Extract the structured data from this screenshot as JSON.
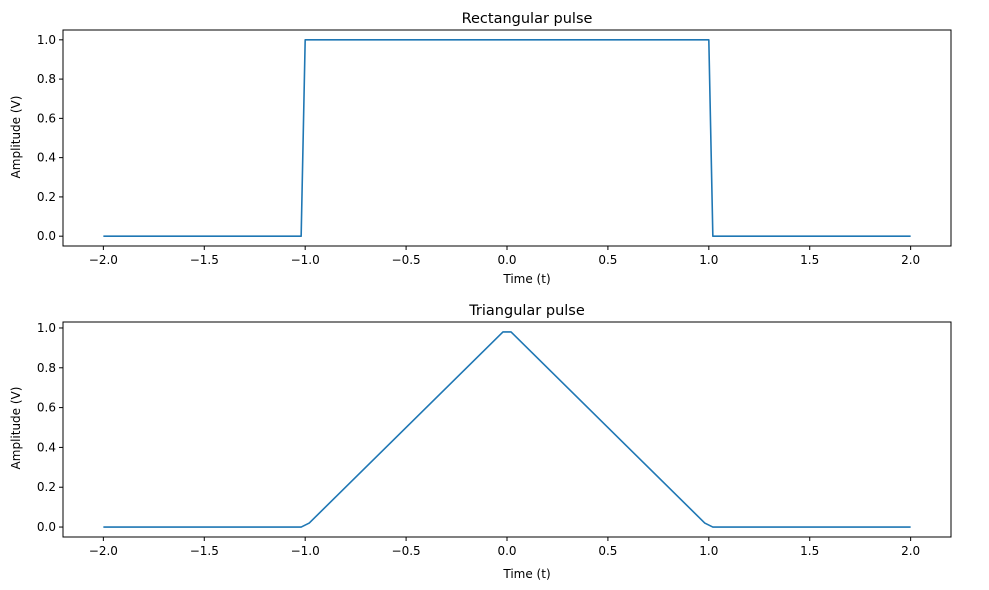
{
  "chart_data": [
    {
      "type": "line",
      "title": "Rectangular pulse",
      "xlabel": "Time (t)",
      "ylabel": "Amplitude (V)",
      "xlim": [
        -2.2,
        2.2
      ],
      "ylim": [
        -0.05,
        1.05
      ],
      "xticks": [
        -2.0,
        -1.5,
        -1.0,
        -0.5,
        0.0,
        0.5,
        1.0,
        1.5,
        2.0
      ],
      "xtick_labels": [
        "−2.0",
        "−1.5",
        "−1.0",
        "−0.5",
        "0.0",
        "0.5",
        "1.0",
        "1.5",
        "2.0"
      ],
      "yticks": [
        0.0,
        0.2,
        0.4,
        0.6,
        0.8,
        1.0
      ],
      "ytick_labels": [
        "0.0",
        "0.2",
        "0.4",
        "0.6",
        "0.8",
        "1.0"
      ],
      "grid": false,
      "color": "#1f77b4",
      "series": [
        {
          "x": [
            -2.0,
            -1.02,
            -1.0,
            1.0,
            1.02,
            2.0
          ],
          "y": [
            0.0,
            0.0,
            1.0,
            1.0,
            0.0,
            0.0
          ]
        }
      ]
    },
    {
      "type": "line",
      "title": "Triangular pulse",
      "xlabel": "Time (t)",
      "ylabel": "Amplitude (V)",
      "xlim": [
        -2.2,
        2.2
      ],
      "ylim": [
        -0.05,
        1.03
      ],
      "xticks": [
        -2.0,
        -1.5,
        -1.0,
        -0.5,
        0.0,
        0.5,
        1.0,
        1.5,
        2.0
      ],
      "xtick_labels": [
        "−2.0",
        "−1.5",
        "−1.0",
        "−0.5",
        "0.0",
        "0.5",
        "1.0",
        "1.5",
        "2.0"
      ],
      "yticks": [
        0.0,
        0.2,
        0.4,
        0.6,
        0.8,
        1.0
      ],
      "ytick_labels": [
        "0.0",
        "0.2",
        "0.4",
        "0.6",
        "0.8",
        "1.0"
      ],
      "grid": false,
      "color": "#1f77b4",
      "series": [
        {
          "x": [
            -2.0,
            -1.02,
            -0.98,
            -0.02,
            0.02,
            0.98,
            1.02,
            2.0
          ],
          "y": [
            0.0,
            0.0,
            0.02,
            0.98,
            0.98,
            0.02,
            0.0,
            0.0
          ]
        }
      ]
    }
  ]
}
